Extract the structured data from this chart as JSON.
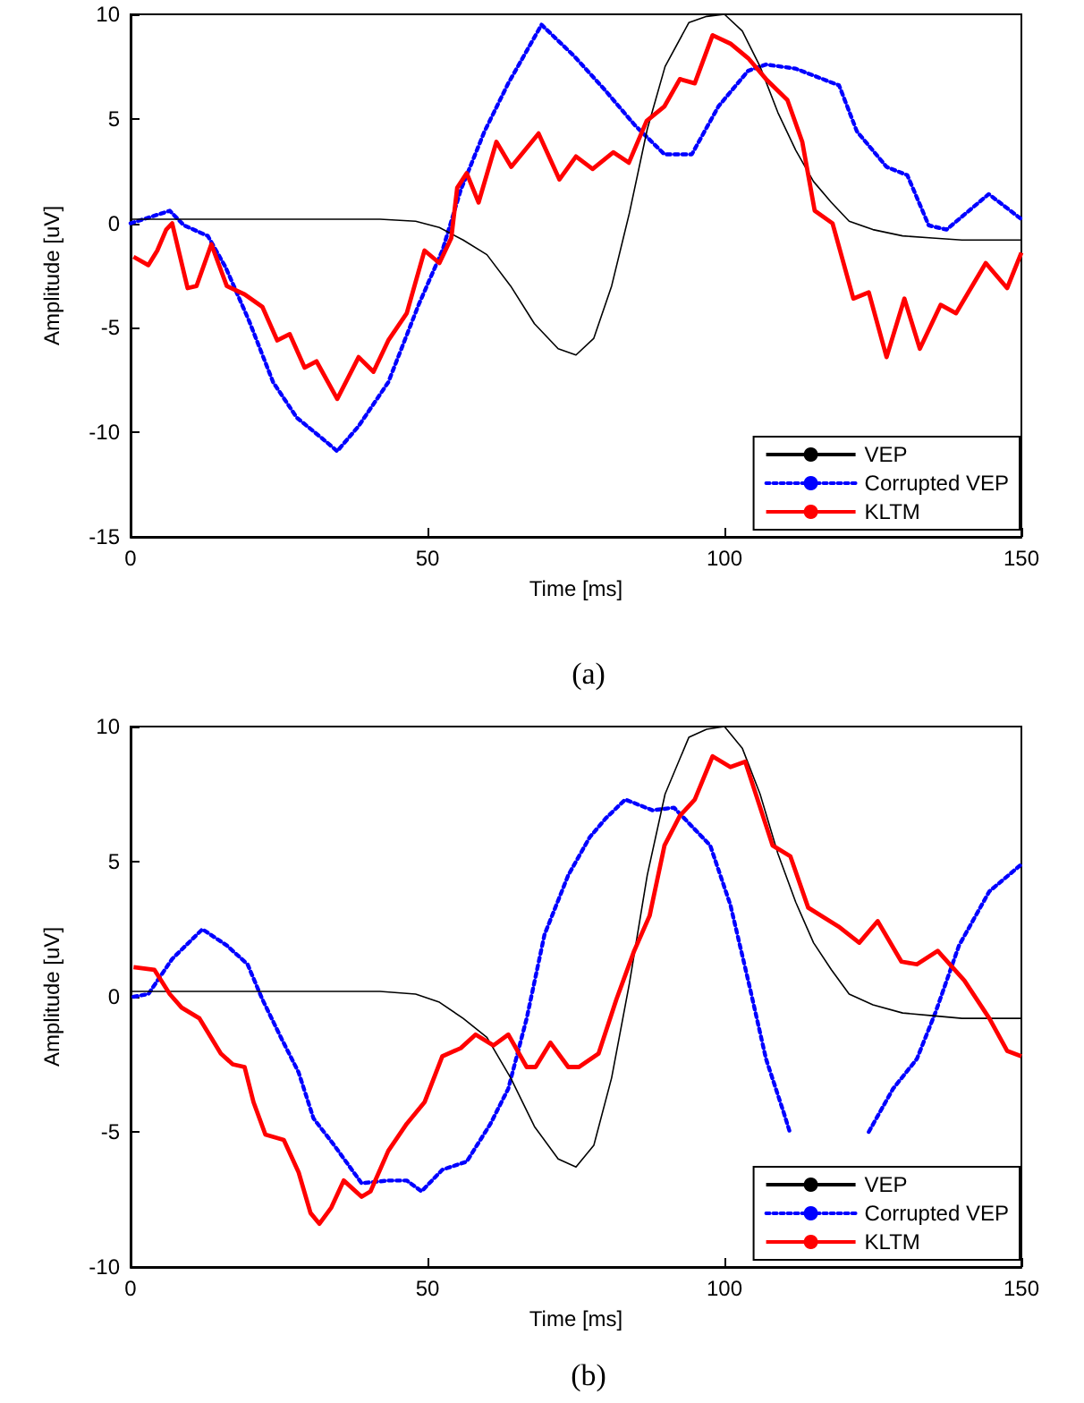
{
  "chart_data": [
    {
      "type": "line",
      "title": "(a)",
      "xlabel": "Time [ms]",
      "ylabel": "Amplitude [uV]",
      "xlim": [
        0,
        150
      ],
      "ylim": [
        -15,
        10
      ],
      "xticks": [
        0,
        50,
        100,
        150
      ],
      "yticks": [
        -15,
        -10,
        -5,
        0,
        5,
        10
      ],
      "legend": "bottom right",
      "series": [
        {
          "name": "VEP",
          "color": "#000000",
          "line_style": "solid",
          "x": [
            0,
            42,
            48,
            52,
            56,
            60,
            64,
            68,
            72,
            75,
            78,
            81,
            84,
            87,
            90,
            94,
            97,
            100,
            103,
            106,
            109,
            112,
            115,
            118,
            121,
            125,
            130,
            135,
            140,
            150
          ],
          "values": [
            0.2,
            0.2,
            0.1,
            -0.2,
            -0.8,
            -1.5,
            -3,
            -4.8,
            -6,
            -6.3,
            -5.5,
            -3,
            0.5,
            4.5,
            7.5,
            9.6,
            9.9,
            10,
            9.2,
            7.5,
            5.3,
            3.5,
            2,
            1,
            0.1,
            -0.3,
            -0.6,
            -0.7,
            -0.8,
            -0.8
          ]
        },
        {
          "name": "Corrupted VEP",
          "color": "#0000ff",
          "line_style": "dotted",
          "x": [
            0,
            6.6,
            9,
            13,
            16,
            20,
            24,
            28,
            32.3,
            34.8,
            38.4,
            43.4,
            48.5,
            52.5,
            55.6,
            59.6,
            63.6,
            69.2,
            74.7,
            79.8,
            84.9,
            89.9,
            94.5,
            99,
            104,
            107,
            112,
            119.3,
            122.3,
            127.3,
            130.8,
            134.4,
            137.4,
            144.5,
            150
          ],
          "values": [
            0,
            0.6,
            -0.1,
            -0.6,
            -2.1,
            -4.7,
            -7.6,
            -9.3,
            -10.3,
            -10.9,
            -9.7,
            -7.6,
            -3.9,
            -1.3,
            1.6,
            4.4,
            6.7,
            9.5,
            8,
            6.4,
            4.7,
            3.3,
            3.3,
            5.6,
            7.3,
            7.6,
            7.4,
            6.6,
            4.4,
            2.7,
            2.3,
            -0.1,
            -0.3,
            1.4,
            0.2
          ]
        },
        {
          "name": "KLTM",
          "color": "#ff0000",
          "line_style": "solid",
          "x": [
            0.5,
            3,
            4.5,
            6,
            7,
            9.6,
            11.1,
            13.6,
            16.2,
            19.2,
            22.2,
            24.7,
            26.8,
            29.3,
            31.3,
            34.8,
            38.4,
            40.9,
            43.4,
            46.5,
            49.5,
            52,
            54,
            55,
            56.6,
            58.6,
            61.6,
            64.1,
            68.7,
            72.2,
            75,
            77.8,
            81.3,
            83.9,
            86.9,
            89.9,
            92.5,
            95,
            98,
            101,
            104,
            107,
            110.6,
            113.1,
            115.2,
            118.2,
            121.7,
            124.3,
            127.3,
            130.3,
            132.9,
            136.4,
            139,
            144,
            147.6,
            150
          ],
          "values": [
            -1.6,
            -2,
            -1.3,
            -0.3,
            0,
            -3.1,
            -3,
            -1,
            -3,
            -3.4,
            -4,
            -5.6,
            -5.3,
            -6.9,
            -6.6,
            -8.4,
            -6.4,
            -7.1,
            -5.6,
            -4.3,
            -1.3,
            -1.9,
            -0.7,
            1.7,
            2.4,
            1,
            3.9,
            2.7,
            4.3,
            2.1,
            3.2,
            2.6,
            3.4,
            2.9,
            4.9,
            5.6,
            6.9,
            6.7,
            9,
            8.6,
            7.9,
            6.9,
            5.9,
            3.9,
            0.6,
            0,
            -3.6,
            -3.3,
            -6.4,
            -3.6,
            -6,
            -3.9,
            -4.3,
            -1.9,
            -3.1,
            -1.4
          ]
        }
      ]
    },
    {
      "type": "line",
      "title": "(b)",
      "xlabel": "Time [ms]",
      "ylabel": "Amplitude [uV]",
      "xlim": [
        0,
        150
      ],
      "ylim": [
        -10,
        10
      ],
      "xticks": [
        0,
        50,
        100,
        150
      ],
      "yticks": [
        -10,
        -5,
        0,
        5,
        10
      ],
      "legend": "bottom right",
      "series": [
        {
          "name": "VEP",
          "color": "#000000",
          "line_style": "solid",
          "x": [
            0,
            42,
            48,
            52,
            56,
            60,
            64,
            68,
            72,
            75,
            78,
            81,
            84,
            87,
            90,
            94,
            97,
            100,
            103,
            106,
            109,
            112,
            115,
            118,
            121,
            125,
            130,
            135,
            140,
            150
          ],
          "values": [
            0.2,
            0.2,
            0.1,
            -0.2,
            -0.8,
            -1.5,
            -3,
            -4.8,
            -6,
            -6.3,
            -5.5,
            -3,
            0.5,
            4.5,
            7.5,
            9.6,
            9.9,
            10,
            9.2,
            7.5,
            5.3,
            3.5,
            2,
            1,
            0.1,
            -0.3,
            -0.6,
            -0.7,
            -0.8,
            -0.8
          ]
        },
        {
          "name": "Corrupted VEP",
          "color": "#0000ff",
          "line_style": "dotted",
          "x": [
            0.5,
            3,
            7,
            12.1,
            16.2,
            19.7,
            22.2,
            25.3,
            28.3,
            30.8,
            34.3,
            38.9,
            43.4,
            46.5,
            49,
            52.5,
            56.6,
            60.6,
            63.6,
            66.7,
            69.7,
            73.7,
            77.3,
            80,
            83.3,
            87.9,
            91.5,
            97.6,
            101,
            104,
            107,
            110,
            111,
            117,
            124.3,
            128.4,
            132.4,
            135.5,
            139.5,
            144.6,
            150
          ],
          "values": [
            0,
            0.1,
            1.4,
            2.5,
            1.9,
            1.2,
            -0.1,
            -1.5,
            -2.8,
            -4.5,
            -5.5,
            -6.9,
            -6.8,
            -6.8,
            -7.2,
            -6.4,
            -6.1,
            -4.7,
            -3.4,
            -0.8,
            2.3,
            4.5,
            5.9,
            6.6,
            7.3,
            6.9,
            7,
            5.6,
            3.4,
            0.6,
            -2.3,
            -4.3,
            -5,
            null,
            -5,
            -3.4,
            -2.3,
            -0.6,
            1.9,
            3.9,
            4.9
          ]
        },
        {
          "name": "KLTM",
          "color": "#ff0000",
          "line_style": "solid",
          "x": [
            0.5,
            4,
            6.6,
            8.6,
            11.6,
            15.2,
            17.2,
            19.2,
            20.7,
            22.7,
            25.8,
            28.3,
            30.3,
            31.8,
            33.8,
            35.9,
            38.9,
            40.4,
            43.4,
            46.5,
            49.5,
            52.5,
            55.6,
            58.1,
            61.1,
            63.6,
            66.7,
            68.2,
            70.7,
            73.7,
            75.5,
            78.8,
            81.8,
            84.8,
            87.4,
            89.9,
            92.5,
            95,
            98,
            101,
            103.5,
            108.1,
            111.1,
            114.1,
            119.2,
            122.7,
            125.8,
            129.8,
            132.4,
            135.9,
            140.4,
            144.6,
            147.6,
            150
          ],
          "values": [
            1.1,
            1,
            0.1,
            -0.4,
            -0.8,
            -2.1,
            -2.5,
            -2.6,
            -3.9,
            -5.1,
            -5.3,
            -6.5,
            -8,
            -8.4,
            -7.8,
            -6.8,
            -7.4,
            -7.2,
            -5.7,
            -4.7,
            -3.9,
            -2.2,
            -1.9,
            -1.4,
            -1.8,
            -1.4,
            -2.6,
            -2.6,
            -1.7,
            -2.6,
            -2.6,
            -2.1,
            -0.1,
            1.7,
            3,
            5.6,
            6.7,
            7.3,
            8.9,
            8.5,
            8.7,
            5.6,
            5.2,
            3.3,
            2.6,
            2,
            2.8,
            1.3,
            1.2,
            1.7,
            0.6,
            -0.8,
            -2,
            -2.2
          ]
        }
      ]
    }
  ]
}
